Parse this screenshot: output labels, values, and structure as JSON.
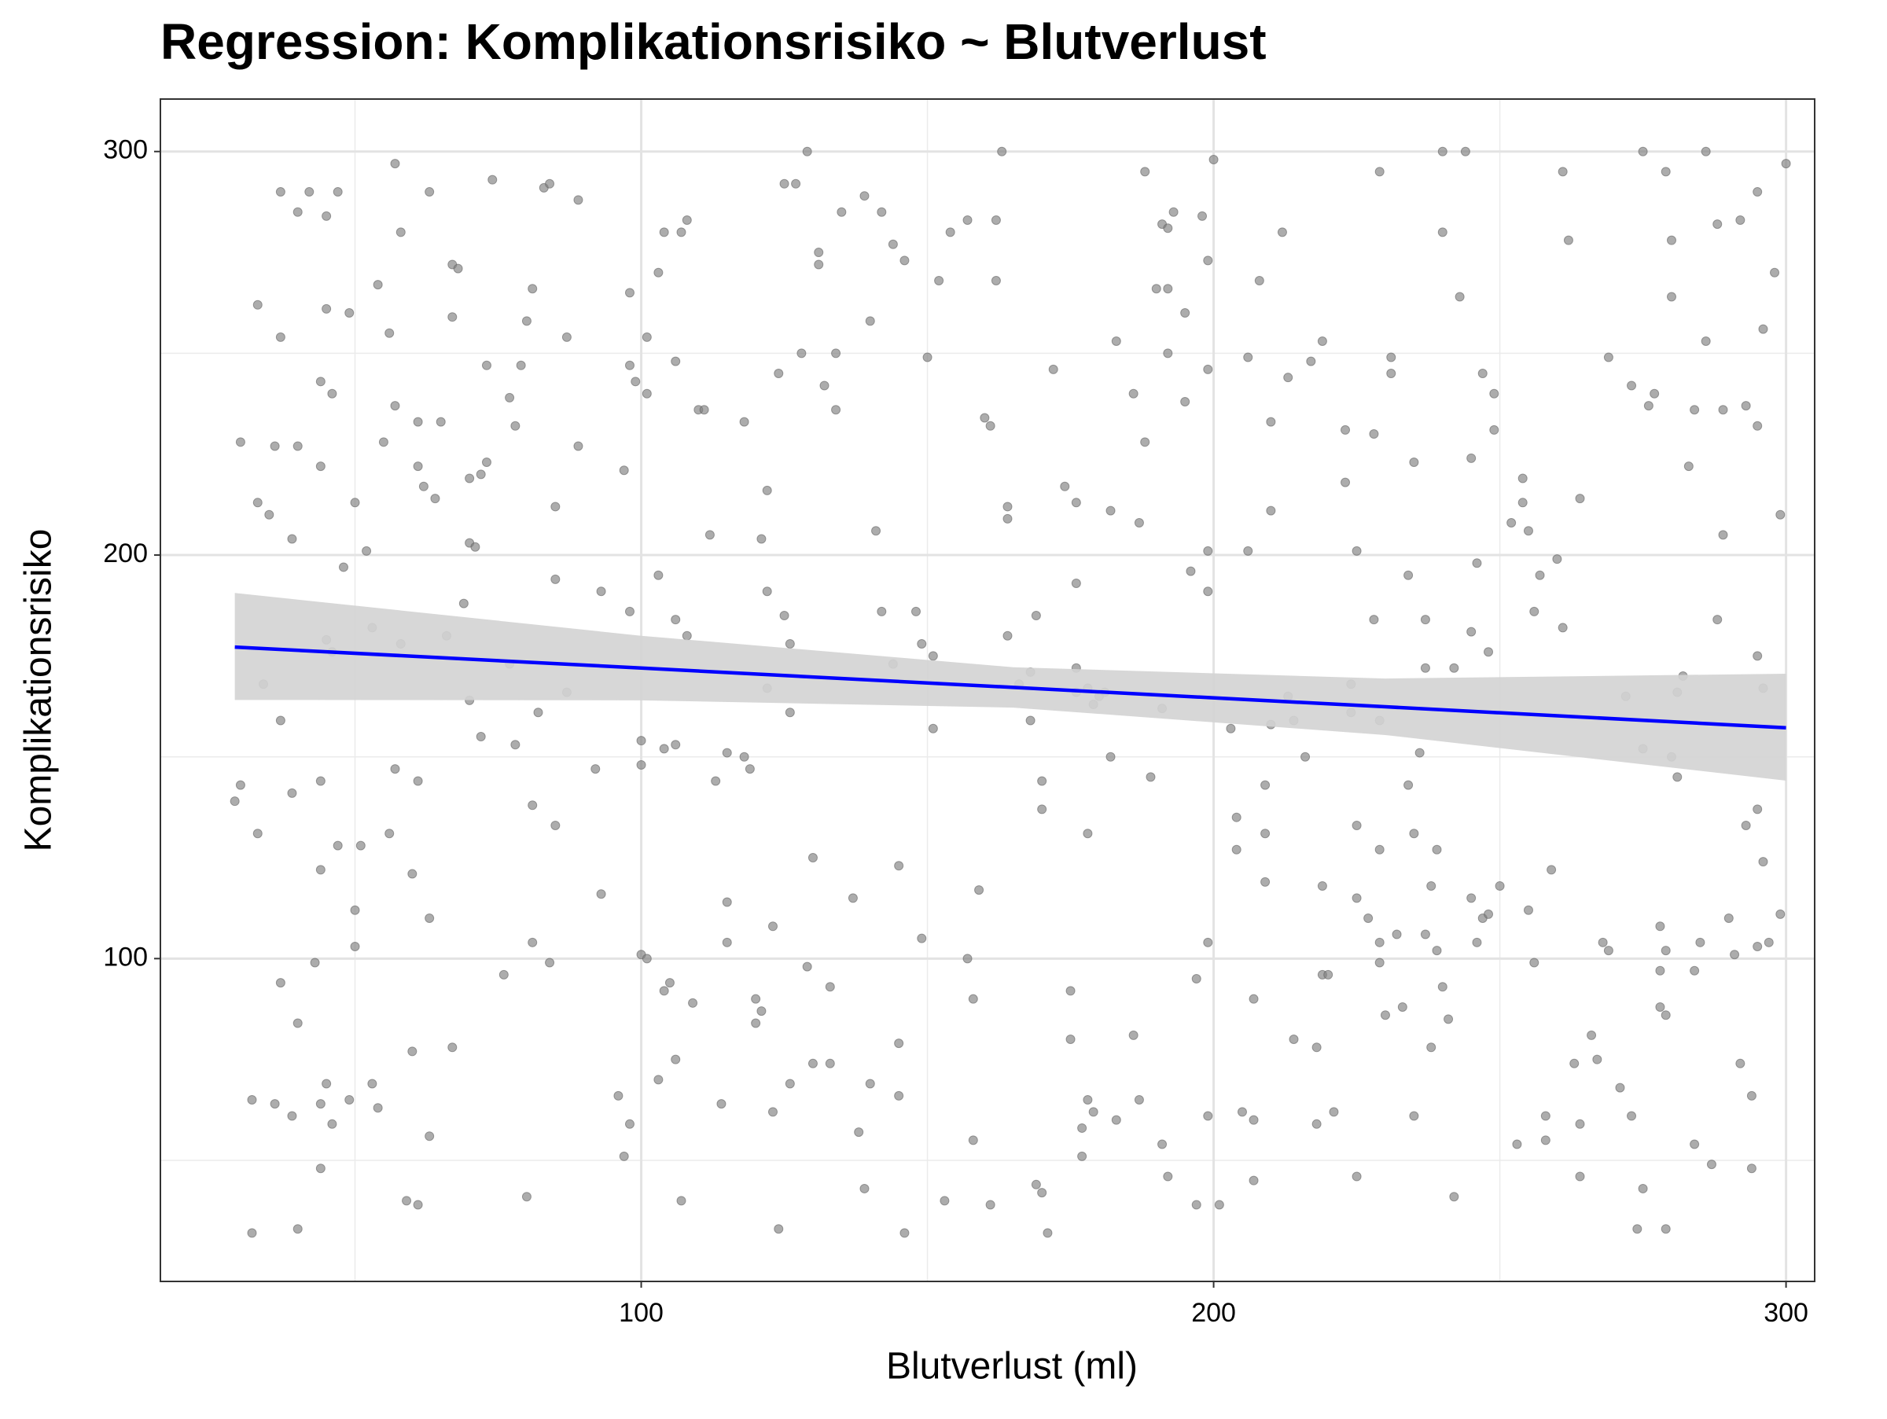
{
  "chart_data": {
    "type": "scatter",
    "title": "Regression: Komplikationsrisiko ~ Blutverlust",
    "x_label": "Blutverlust (ml)",
    "y_label": "Komplikationsrisiko",
    "xlim": [
      16,
      305
    ],
    "ylim": [
      20,
      313
    ],
    "xticks": [
      100,
      200,
      300
    ],
    "yticks": [
      100,
      200,
      300
    ],
    "minor_xticks": [
      50,
      150,
      250
    ],
    "minor_yticks": [
      50,
      150,
      250
    ],
    "grid": true,
    "point_color": "#808080",
    "points": [
      [
        29,
        139
      ],
      [
        30,
        143
      ],
      [
        30,
        228
      ],
      [
        32,
        65
      ],
      [
        32,
        32
      ],
      [
        33,
        262
      ],
      [
        33,
        213
      ],
      [
        33,
        131
      ],
      [
        34,
        168
      ],
      [
        35,
        210
      ],
      [
        36,
        227
      ],
      [
        36,
        64
      ],
      [
        37,
        290
      ],
      [
        37,
        94
      ],
      [
        37,
        159
      ],
      [
        37,
        254
      ],
      [
        39,
        204
      ],
      [
        39,
        141
      ],
      [
        39,
        61
      ],
      [
        40,
        285
      ],
      [
        40,
        84
      ],
      [
        40,
        227
      ],
      [
        40,
        33
      ],
      [
        42,
        290
      ],
      [
        43,
        99
      ],
      [
        44,
        243
      ],
      [
        44,
        222
      ],
      [
        44,
        144
      ],
      [
        44,
        122
      ],
      [
        44,
        64
      ],
      [
        44,
        48
      ],
      [
        45,
        179
      ],
      [
        45,
        261
      ],
      [
        45,
        284
      ],
      [
        45,
        69
      ],
      [
        46,
        240
      ],
      [
        46,
        59
      ],
      [
        46,
        176
      ],
      [
        47,
        290
      ],
      [
        47,
        128
      ],
      [
        48,
        197
      ],
      [
        49,
        260
      ],
      [
        49,
        65
      ],
      [
        50,
        213
      ],
      [
        50,
        112
      ],
      [
        50,
        103
      ],
      [
        51,
        128
      ],
      [
        52,
        201
      ],
      [
        53,
        182
      ],
      [
        53,
        69
      ],
      [
        54,
        267
      ],
      [
        54,
        63
      ],
      [
        55,
        228
      ],
      [
        56,
        255
      ],
      [
        56,
        131
      ],
      [
        57,
        237
      ],
      [
        57,
        147
      ],
      [
        57,
        297
      ],
      [
        58,
        178
      ],
      [
        58,
        280
      ],
      [
        59,
        40
      ],
      [
        60,
        121
      ],
      [
        60,
        77
      ],
      [
        61,
        222
      ],
      [
        61,
        233
      ],
      [
        61,
        144
      ],
      [
        61,
        39
      ],
      [
        62,
        217
      ],
      [
        63,
        290
      ],
      [
        63,
        110
      ],
      [
        63,
        56
      ],
      [
        64,
        214
      ],
      [
        65,
        233
      ],
      [
        66,
        180
      ],
      [
        67,
        272
      ],
      [
        67,
        259
      ],
      [
        67,
        78
      ],
      [
        68,
        271
      ],
      [
        69,
        188
      ],
      [
        70,
        164
      ],
      [
        70,
        203
      ],
      [
        70,
        219
      ],
      [
        71,
        202
      ],
      [
        72,
        155
      ],
      [
        72,
        220
      ],
      [
        73,
        247
      ],
      [
        73,
        223
      ],
      [
        74,
        293
      ],
      [
        76,
        96
      ],
      [
        77,
        239
      ],
      [
        77,
        173
      ],
      [
        78,
        232
      ],
      [
        78,
        153
      ],
      [
        79,
        247
      ],
      [
        80,
        41
      ],
      [
        80,
        258
      ],
      [
        81,
        138
      ],
      [
        81,
        104
      ],
      [
        81,
        266
      ],
      [
        82,
        161
      ],
      [
        83,
        291
      ],
      [
        84,
        99
      ],
      [
        84,
        292
      ],
      [
        85,
        194
      ],
      [
        85,
        133
      ],
      [
        85,
        212
      ],
      [
        87,
        166
      ],
      [
        87,
        254
      ],
      [
        89,
        288
      ],
      [
        89,
        227
      ],
      [
        92,
        147
      ],
      [
        93,
        191
      ],
      [
        93,
        116
      ],
      [
        96,
        66
      ],
      [
        97,
        51
      ],
      [
        97,
        221
      ],
      [
        98,
        265
      ],
      [
        98,
        186
      ],
      [
        98,
        59
      ],
      [
        98,
        247
      ],
      [
        99,
        243
      ],
      [
        100,
        101
      ],
      [
        100,
        154
      ],
      [
        100,
        148
      ],
      [
        101,
        240
      ],
      [
        101,
        254
      ],
      [
        101,
        100
      ],
      [
        103,
        195
      ],
      [
        103,
        270
      ],
      [
        103,
        70
      ],
      [
        104,
        92
      ],
      [
        104,
        152
      ],
      [
        104,
        280
      ],
      [
        105,
        94
      ],
      [
        106,
        248
      ],
      [
        106,
        184
      ],
      [
        106,
        153
      ],
      [
        106,
        75
      ],
      [
        107,
        40
      ],
      [
        107,
        280
      ],
      [
        108,
        180
      ],
      [
        108,
        283
      ],
      [
        109,
        89
      ],
      [
        110,
        236
      ],
      [
        111,
        236
      ],
      [
        112,
        205
      ],
      [
        113,
        144
      ],
      [
        114,
        64
      ],
      [
        115,
        151
      ],
      [
        115,
        114
      ],
      [
        115,
        104
      ],
      [
        118,
        233
      ],
      [
        118,
        150
      ],
      [
        119,
        147
      ],
      [
        120,
        90
      ],
      [
        120,
        84
      ],
      [
        121,
        204
      ],
      [
        121,
        87
      ],
      [
        122,
        191
      ],
      [
        122,
        216
      ],
      [
        122,
        167
      ],
      [
        123,
        108
      ],
      [
        123,
        62
      ],
      [
        124,
        33
      ],
      [
        124,
        245
      ],
      [
        125,
        185
      ],
      [
        125,
        292
      ],
      [
        126,
        178
      ],
      [
        126,
        161
      ],
      [
        126,
        69
      ],
      [
        127,
        292
      ],
      [
        128,
        250
      ],
      [
        129,
        98
      ],
      [
        129,
        300
      ],
      [
        130,
        125
      ],
      [
        130,
        74
      ],
      [
        131,
        275
      ],
      [
        131,
        272
      ],
      [
        132,
        242
      ],
      [
        133,
        74
      ],
      [
        133,
        93
      ],
      [
        134,
        250
      ],
      [
        134,
        236
      ],
      [
        135,
        285
      ],
      [
        137,
        115
      ],
      [
        138,
        57
      ],
      [
        139,
        289
      ],
      [
        139,
        43
      ],
      [
        140,
        258
      ],
      [
        140,
        69
      ],
      [
        141,
        206
      ],
      [
        142,
        285
      ],
      [
        142,
        186
      ],
      [
        144,
        173
      ],
      [
        144,
        277
      ],
      [
        145,
        123
      ],
      [
        145,
        79
      ],
      [
        145,
        66
      ],
      [
        146,
        273
      ],
      [
        146,
        32
      ],
      [
        148,
        186
      ],
      [
        149,
        105
      ],
      [
        149,
        178
      ],
      [
        150,
        249
      ],
      [
        151,
        175
      ],
      [
        151,
        157
      ],
      [
        152,
        268
      ],
      [
        153,
        40
      ],
      [
        154,
        280
      ],
      [
        157,
        283
      ],
      [
        157,
        100
      ],
      [
        158,
        90
      ],
      [
        158,
        55
      ],
      [
        159,
        117
      ],
      [
        160,
        234
      ],
      [
        161,
        39
      ],
      [
        161,
        232
      ],
      [
        162,
        283
      ],
      [
        162,
        268
      ],
      [
        163,
        300
      ],
      [
        164,
        180
      ],
      [
        164,
        212
      ],
      [
        164,
        209
      ],
      [
        166,
        168
      ],
      [
        168,
        171
      ],
      [
        168,
        159
      ],
      [
        169,
        44
      ],
      [
        169,
        185
      ],
      [
        170,
        137
      ],
      [
        170,
        144
      ],
      [
        170,
        42
      ],
      [
        171,
        32
      ],
      [
        172,
        246
      ],
      [
        174,
        217
      ],
      [
        175,
        92
      ],
      [
        175,
        80
      ],
      [
        176,
        172
      ],
      [
        176,
        166
      ],
      [
        176,
        213
      ],
      [
        176,
        193
      ],
      [
        177,
        51
      ],
      [
        177,
        58
      ],
      [
        178,
        131
      ],
      [
        178,
        65
      ],
      [
        178,
        167
      ],
      [
        179,
        163
      ],
      [
        179,
        62
      ],
      [
        180,
        165
      ],
      [
        181,
        166
      ],
      [
        182,
        211
      ],
      [
        182,
        150
      ],
      [
        183,
        60
      ],
      [
        183,
        253
      ],
      [
        186,
        240
      ],
      [
        186,
        81
      ],
      [
        187,
        208
      ],
      [
        187,
        65
      ],
      [
        188,
        295
      ],
      [
        188,
        228
      ],
      [
        189,
        145
      ],
      [
        190,
        266
      ],
      [
        191,
        282
      ],
      [
        191,
        54
      ],
      [
        191,
        162
      ],
      [
        192,
        250
      ],
      [
        192,
        266
      ],
      [
        192,
        281
      ],
      [
        192,
        46
      ],
      [
        193,
        285
      ],
      [
        195,
        260
      ],
      [
        195,
        238
      ],
      [
        196,
        196
      ],
      [
        197,
        39
      ],
      [
        197,
        95
      ],
      [
        198,
        284
      ],
      [
        199,
        273
      ],
      [
        199,
        246
      ],
      [
        199,
        201
      ],
      [
        199,
        104
      ],
      [
        199,
        61
      ],
      [
        199,
        191
      ],
      [
        200,
        298
      ],
      [
        201,
        39
      ],
      [
        203,
        157
      ],
      [
        204,
        135
      ],
      [
        204,
        127
      ],
      [
        205,
        62
      ],
      [
        206,
        249
      ],
      [
        206,
        201
      ],
      [
        207,
        60
      ],
      [
        207,
        90
      ],
      [
        207,
        45
      ],
      [
        208,
        268
      ],
      [
        209,
        143
      ],
      [
        209,
        131
      ],
      [
        209,
        119
      ],
      [
        210,
        233
      ],
      [
        210,
        211
      ],
      [
        210,
        158
      ],
      [
        212,
        280
      ],
      [
        213,
        165
      ],
      [
        213,
        244
      ],
      [
        214,
        80
      ],
      [
        214,
        159
      ],
      [
        216,
        150
      ],
      [
        217,
        248
      ],
      [
        218,
        59
      ],
      [
        218,
        78
      ],
      [
        219,
        253
      ],
      [
        219,
        118
      ],
      [
        219,
        96
      ],
      [
        220,
        96
      ],
      [
        221,
        62
      ],
      [
        223,
        231
      ],
      [
        223,
        218
      ],
      [
        224,
        161
      ],
      [
        224,
        168
      ],
      [
        225,
        46
      ],
      [
        225,
        201
      ],
      [
        225,
        133
      ],
      [
        225,
        115
      ],
      [
        227,
        110
      ],
      [
        228,
        230
      ],
      [
        228,
        184
      ],
      [
        229,
        99
      ],
      [
        229,
        104
      ],
      [
        229,
        159
      ],
      [
        229,
        127
      ],
      [
        229,
        295
      ],
      [
        230,
        86
      ],
      [
        231,
        249
      ],
      [
        231,
        245
      ],
      [
        232,
        106
      ],
      [
        233,
        88
      ],
      [
        234,
        143
      ],
      [
        234,
        195
      ],
      [
        235,
        223
      ],
      [
        235,
        131
      ],
      [
        235,
        61
      ],
      [
        236,
        151
      ],
      [
        237,
        184
      ],
      [
        237,
        172
      ],
      [
        237,
        106
      ],
      [
        238,
        118
      ],
      [
        238,
        78
      ],
      [
        239,
        102
      ],
      [
        239,
        127
      ],
      [
        240,
        93
      ],
      [
        240,
        300
      ],
      [
        240,
        280
      ],
      [
        241,
        85
      ],
      [
        242,
        172
      ],
      [
        242,
        41
      ],
      [
        243,
        264
      ],
      [
        244,
        300
      ],
      [
        245,
        115
      ],
      [
        245,
        224
      ],
      [
        245,
        181
      ],
      [
        246,
        198
      ],
      [
        246,
        104
      ],
      [
        247,
        245
      ],
      [
        247,
        110
      ],
      [
        248,
        176
      ],
      [
        248,
        111
      ],
      [
        249,
        240
      ],
      [
        249,
        231
      ],
      [
        250,
        118
      ],
      [
        252,
        208
      ],
      [
        253,
        54
      ],
      [
        254,
        219
      ],
      [
        254,
        213
      ],
      [
        255,
        206
      ],
      [
        255,
        112
      ],
      [
        256,
        99
      ],
      [
        256,
        186
      ],
      [
        257,
        195
      ],
      [
        258,
        55
      ],
      [
        258,
        61
      ],
      [
        259,
        122
      ],
      [
        260,
        199
      ],
      [
        261,
        182
      ],
      [
        261,
        295
      ],
      [
        262,
        278
      ],
      [
        263,
        74
      ],
      [
        264,
        46
      ],
      [
        264,
        59
      ],
      [
        264,
        214
      ],
      [
        266,
        81
      ],
      [
        267,
        75
      ],
      [
        268,
        104
      ],
      [
        269,
        102
      ],
      [
        269,
        249
      ],
      [
        271,
        68
      ],
      [
        272,
        165
      ],
      [
        273,
        242
      ],
      [
        273,
        61
      ],
      [
        274,
        33
      ],
      [
        275,
        300
      ],
      [
        275,
        43
      ],
      [
        275,
        152
      ],
      [
        276,
        237
      ],
      [
        277,
        240
      ],
      [
        278,
        88
      ],
      [
        278,
        108
      ],
      [
        278,
        97
      ],
      [
        279,
        295
      ],
      [
        279,
        102
      ],
      [
        279,
        86
      ],
      [
        279,
        33
      ],
      [
        280,
        278
      ],
      [
        280,
        150
      ],
      [
        280,
        264
      ],
      [
        281,
        166
      ],
      [
        281,
        145
      ],
      [
        282,
        170
      ],
      [
        283,
        222
      ],
      [
        284,
        236
      ],
      [
        284,
        54
      ],
      [
        284,
        97
      ],
      [
        285,
        104
      ],
      [
        286,
        253
      ],
      [
        286,
        300
      ],
      [
        287,
        49
      ],
      [
        288,
        282
      ],
      [
        288,
        184
      ],
      [
        289,
        236
      ],
      [
        289,
        205
      ],
      [
        290,
        110
      ],
      [
        291,
        101
      ],
      [
        292,
        74
      ],
      [
        292,
        283
      ],
      [
        293,
        133
      ],
      [
        293,
        237
      ],
      [
        294,
        48
      ],
      [
        294,
        66
      ],
      [
        295,
        290
      ],
      [
        295,
        232
      ],
      [
        295,
        175
      ],
      [
        295,
        137
      ],
      [
        295,
        103
      ],
      [
        296,
        124
      ],
      [
        296,
        167
      ],
      [
        296,
        256
      ],
      [
        297,
        104
      ],
      [
        298,
        270
      ],
      [
        299,
        210
      ],
      [
        299,
        111
      ],
      [
        300,
        297
      ]
    ],
    "fit": {
      "color": "#0000ff",
      "band_color": "#d3d3d3",
      "x": [
        29,
        100,
        165,
        230,
        300
      ],
      "values": [
        177.2,
        172.0,
        167.2,
        162.4,
        157.2
      ],
      "lower": [
        164.1,
        164.0,
        162.2,
        155.4,
        144.1
      ],
      "upper": [
        190.6,
        180.0,
        172.2,
        169.4,
        170.6
      ]
    }
  }
}
